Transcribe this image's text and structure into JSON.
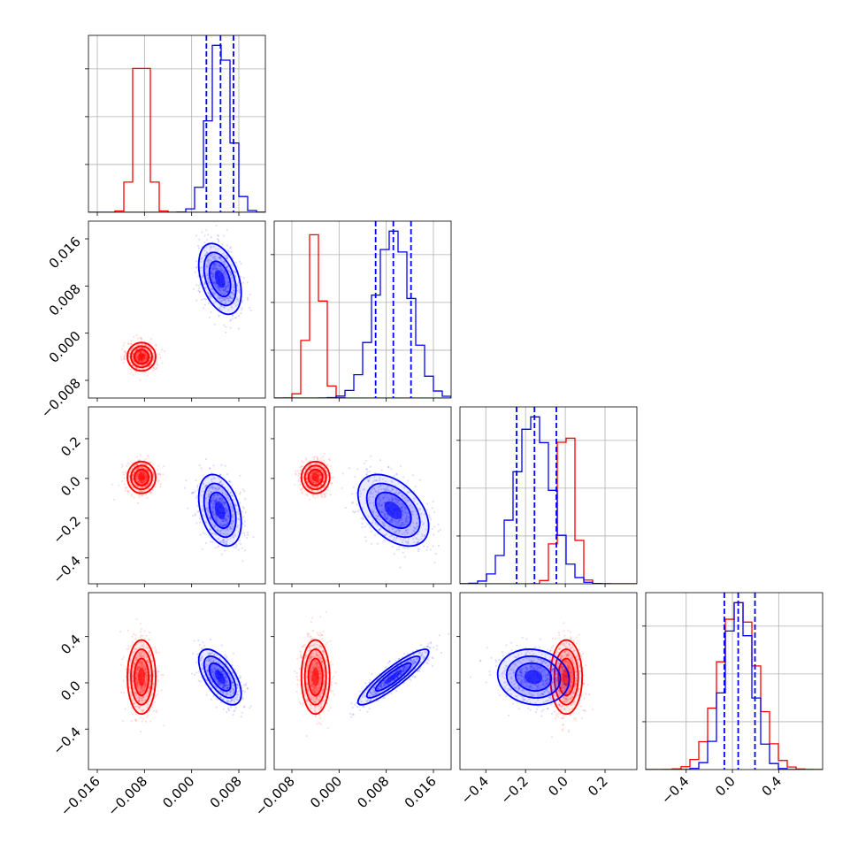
{
  "chart_data": {
    "type": "corner",
    "parameters": 4,
    "grid": true,
    "colors": {
      "red": "#ff0000",
      "blue": "#0000ff"
    },
    "ticks": [
      {
        "values": [
          -0.016,
          -0.008,
          0.0,
          0.008
        ],
        "labels": [
          "−0.016",
          "−0.008",
          "0.000",
          "0.008"
        ]
      },
      {
        "values": [
          -0.008,
          0.0,
          0.008,
          0.016
        ],
        "labels": [
          "−0.008",
          "0.000",
          "0.008",
          "0.016"
        ]
      },
      {
        "values": [
          -0.4,
          -0.2,
          0.0,
          0.2
        ],
        "labels": [
          "−0.4",
          "−0.2",
          "0.0",
          "0.2"
        ]
      },
      {
        "values": [
          -0.4,
          0.0,
          0.4
        ],
        "labels": [
          "−0.4",
          "0.0",
          "0.4"
        ]
      }
    ],
    "ranges": [
      [
        -0.0175,
        0.0125
      ],
      [
        -0.011,
        0.019
      ],
      [
        -0.53,
        0.36
      ],
      [
        -0.75,
        0.78
      ]
    ],
    "distributions": {
      "red": {
        "mean": [
          -0.0085,
          -0.004,
          0.005,
          0.05
        ],
        "sd": [
          0.0012,
          0.0012,
          0.04,
          0.16
        ],
        "corr": {
          "1-0": 0.0,
          "2-0": 0.0,
          "2-1": 0.0,
          "3-0": 0.0,
          "3-1": 0.0,
          "3-2": 0.0
        }
      },
      "blue": {
        "mean": [
          0.0048,
          0.0092,
          -0.16,
          0.05
        ],
        "sd": [
          0.0018,
          0.003,
          0.09,
          0.12
        ],
        "corr": {
          "1-0": -0.4,
          "2-0": -0.35,
          "2-1": -0.45,
          "3-0": -0.6,
          "3-1": 0.9,
          "3-2": -0.1
        }
      }
    },
    "quantile_lines": [
      [
        0.0025,
        0.0049,
        0.0071
      ],
      [
        0.0062,
        0.0092,
        0.0122
      ],
      [
        -0.245,
        -0.155,
        -0.045
      ],
      [
        -0.07,
        0.05,
        0.195
      ]
    ]
  }
}
